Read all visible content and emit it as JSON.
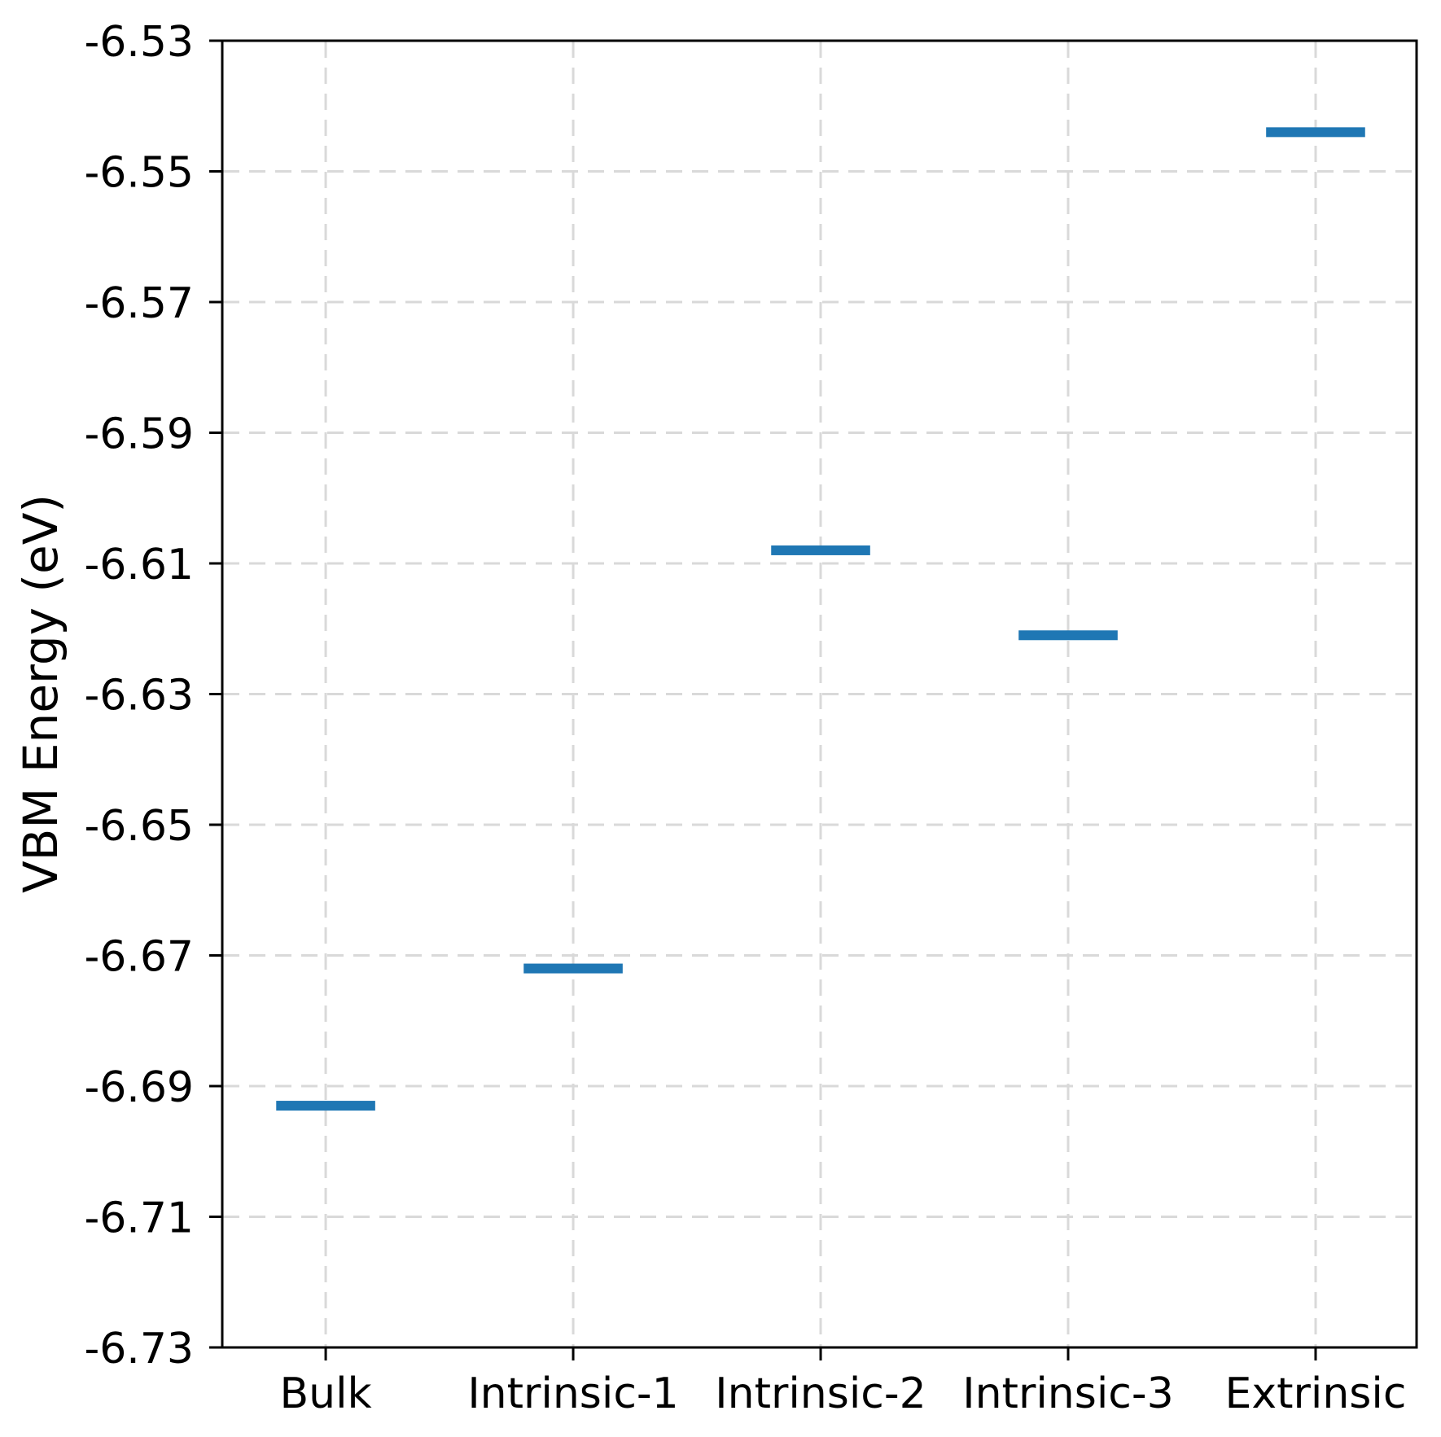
{
  "chart_data": {
    "type": "scatter",
    "marker_style": "horizontal-dash",
    "title": "",
    "xlabel": "",
    "ylabel": "VBM Energy (eV)",
    "categories": [
      "Bulk",
      "Intrinsic-1",
      "Intrinsic-2",
      "Intrinsic-3",
      "Extrinsic"
    ],
    "values": [
      -6.693,
      -6.672,
      -6.608,
      -6.621,
      -6.544
    ],
    "series": [
      {
        "name": "VBM Energy",
        "values": [
          -6.693,
          -6.672,
          -6.608,
          -6.621,
          -6.544
        ]
      }
    ],
    "ylim": [
      -6.73,
      -6.53
    ],
    "xlim": [
      -0.418,
      4.408
    ],
    "yticks": [
      -6.53,
      -6.55,
      -6.57,
      -6.59,
      -6.61,
      -6.63,
      -6.65,
      -6.67,
      -6.69,
      -6.71,
      -6.73
    ],
    "ytick_labels": [
      "-6.53",
      "-6.55",
      "-6.57",
      "-6.59",
      "-6.61",
      "-6.63",
      "-6.65",
      "-6.67",
      "-6.69",
      "-6.71",
      "-6.73"
    ],
    "grid": true,
    "grid_style": "dashed",
    "legend": "none",
    "marker_width_units": 0.4,
    "marker_thickness_px": 12,
    "colors": {
      "marker": "#1f77b4",
      "grid": "#d9d9d9",
      "axis": "#000000",
      "background": "#ffffff"
    }
  }
}
